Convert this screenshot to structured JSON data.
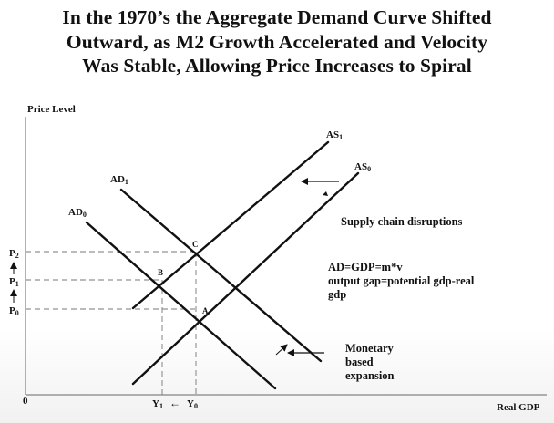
{
  "title": {
    "line1": "In the 1970’s the Aggregate Demand Curve Shifted",
    "line2": "Outward, as M2 Growth Accelerated and Velocity",
    "line3": "Was Stable, Allowing Price Increases to Spiral"
  },
  "axes": {
    "ylabel": "Price Level",
    "xlabel": "Real GDP",
    "origin": "0"
  },
  "curves": {
    "as1": "AS1",
    "as0": "AS0",
    "ad1": "AD1",
    "ad0": "AD0"
  },
  "points": {
    "a": "A",
    "b": "B",
    "c": "C"
  },
  "price_levels": {
    "p2": "P2",
    "p1": "P1",
    "p0": "P0"
  },
  "output_levels": {
    "y1": "Y1",
    "y0": "Y0",
    "arrow": "←"
  },
  "notes": {
    "supply": "Supply chain disruptions",
    "eq1": "AD=GDP=m*v",
    "eq2": "output gap=potential gdp-real",
    "eq3": "gdp",
    "monetary1": "Monetary",
    "monetary2": "based",
    "monetary3": "expansion"
  },
  "colors": {
    "ink": "#111111",
    "guide": "#777777"
  }
}
